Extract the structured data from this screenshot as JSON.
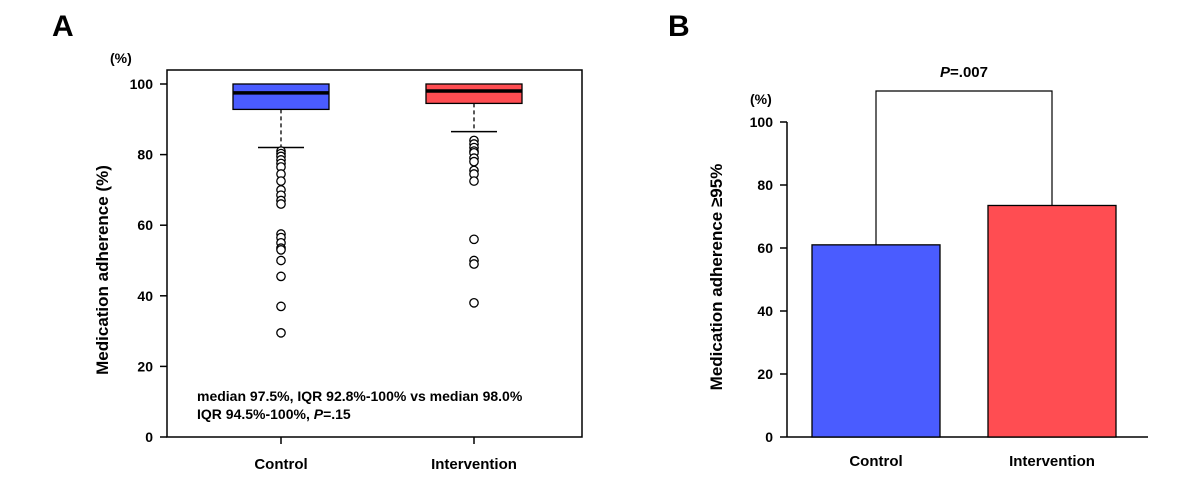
{
  "chart_data": [
    {
      "panel": "A",
      "type": "box",
      "ylabel": "Medication adherence (%)",
      "unit": "(%)",
      "ylim": [
        0,
        100
      ],
      "yticks": [
        0,
        20,
        40,
        60,
        80,
        100
      ],
      "categories": [
        "Control",
        "Intervention"
      ],
      "colors": [
        "#4a5cff",
        "#ff4d52"
      ],
      "boxes": [
        {
          "category": "Control",
          "q1": 92.8,
          "median": 97.5,
          "q3": 100,
          "whisker_low": 82,
          "whisker_high": 100,
          "outliers": [
            81,
            80.3,
            79.5,
            78.5,
            77.5,
            76.5,
            74.5,
            72.5,
            70,
            68.5,
            67,
            66,
            57.5,
            56.5,
            55,
            53.5,
            53,
            50,
            45.5,
            37,
            29.5
          ]
        },
        {
          "category": "Intervention",
          "q1": 94.5,
          "median": 98.0,
          "q3": 100,
          "whisker_low": 86.5,
          "whisker_high": 100,
          "outliers": [
            84,
            83,
            82,
            81,
            80.5,
            79,
            78,
            75.5,
            74.5,
            72.5,
            56,
            50,
            49,
            38
          ]
        }
      ],
      "annotation": [
        "median 97.5%, IQR 92.8%-100% vs median 98.0%",
        "IQR 94.5%-100%, ",
        "P",
        "=.15"
      ]
    },
    {
      "panel": "B",
      "type": "bar",
      "ylabel": "Medication adherence ≥95%",
      "unit": "(%)",
      "ylim": [
        0,
        100
      ],
      "yticks": [
        0,
        20,
        40,
        60,
        80,
        100
      ],
      "categories": [
        "Control",
        "Intervention"
      ],
      "values": [
        61,
        73.5
      ],
      "colors": [
        "#4a5cff",
        "#ff4d52"
      ],
      "significance": {
        "p_italic": "P",
        "p_value": "=.007"
      }
    }
  ]
}
